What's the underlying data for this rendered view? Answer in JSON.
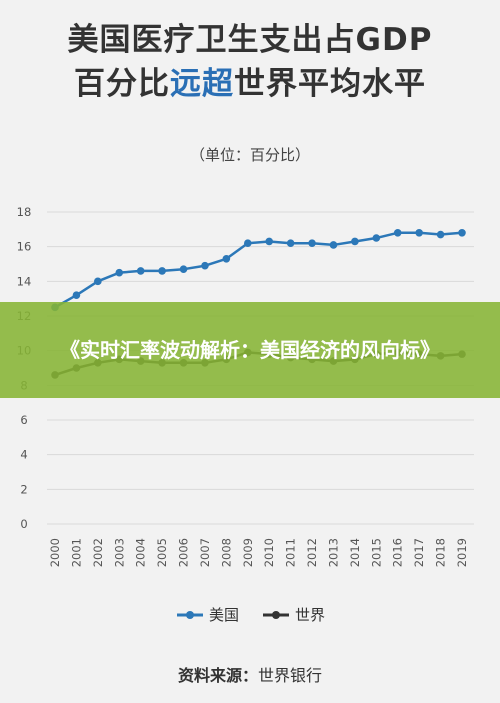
{
  "header": {
    "title_line1": "美国医疗卫生支出占GDP",
    "title_line2_pre": "百分比",
    "title_line2_highlight": "远超",
    "title_line2_post": "世界平均水平",
    "unit": "（单位：百分比）"
  },
  "banner": {
    "text": "《实时汇率波动解析：美国经济的风向标》"
  },
  "legend": {
    "usa": "美国",
    "world": "世界"
  },
  "source": {
    "label": "资料来源：",
    "value": "世界银行"
  },
  "colors": {
    "usa": "#2c78b8",
    "world": "#333333",
    "grid": "#d9d9d9",
    "highlight": "#2a6fb5",
    "banner": "#86b434"
  },
  "chart_data": {
    "type": "line",
    "x": [
      "2000",
      "2001",
      "2002",
      "2003",
      "2004",
      "2005",
      "2006",
      "2007",
      "2008",
      "2009",
      "2010",
      "2011",
      "2012",
      "2013",
      "2014",
      "2015",
      "2016",
      "2017",
      "2018",
      "2019"
    ],
    "ylim": [
      0,
      18
    ],
    "yticks": [
      0,
      2,
      4,
      6,
      8,
      10,
      12,
      14,
      16,
      18
    ],
    "grid": true,
    "legend_position": "bottom",
    "series": [
      {
        "name": "美国",
        "values": [
          12.5,
          13.2,
          14.0,
          14.5,
          14.6,
          14.6,
          14.7,
          14.9,
          15.3,
          16.2,
          16.3,
          16.2,
          16.2,
          16.1,
          16.3,
          16.5,
          16.8,
          16.8,
          16.7,
          16.8
        ]
      },
      {
        "name": "世界",
        "values": [
          8.6,
          9.0,
          9.3,
          9.5,
          9.4,
          9.3,
          9.3,
          9.3,
          9.5,
          9.9,
          9.8,
          9.6,
          9.5,
          9.4,
          9.5,
          9.8,
          9.9,
          9.8,
          9.7,
          9.8
        ]
      }
    ]
  }
}
